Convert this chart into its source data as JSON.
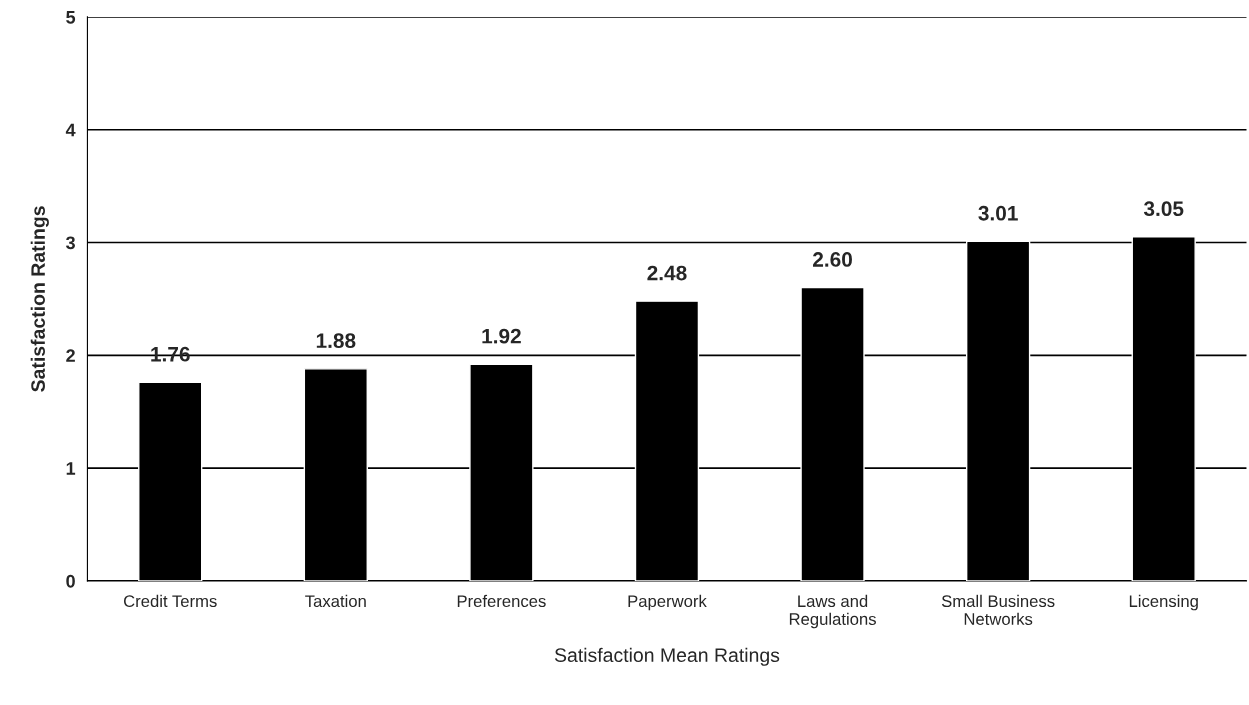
{
  "chart_data": {
    "type": "bar",
    "xlabel": "Satisfaction Mean Ratings",
    "ylabel": "Satisfaction Ratings",
    "categories": [
      "Credit Terms",
      "Taxation",
      "Preferences",
      "Paperwork",
      "Laws and\nRegulations",
      "Small Business\nNetworks",
      "Licensing"
    ],
    "values": [
      1.76,
      1.88,
      1.92,
      2.48,
      2.6,
      3.01,
      3.05
    ],
    "value_labels": [
      "1.76",
      "1.88",
      "1.92",
      "2.48",
      "2.60",
      "3.01",
      "3.05"
    ],
    "color": "#000000",
    "ylim": [
      0,
      5
    ],
    "yticks": [
      0,
      1,
      2,
      3,
      4,
      5
    ],
    "grid": "y",
    "legend": false
  }
}
